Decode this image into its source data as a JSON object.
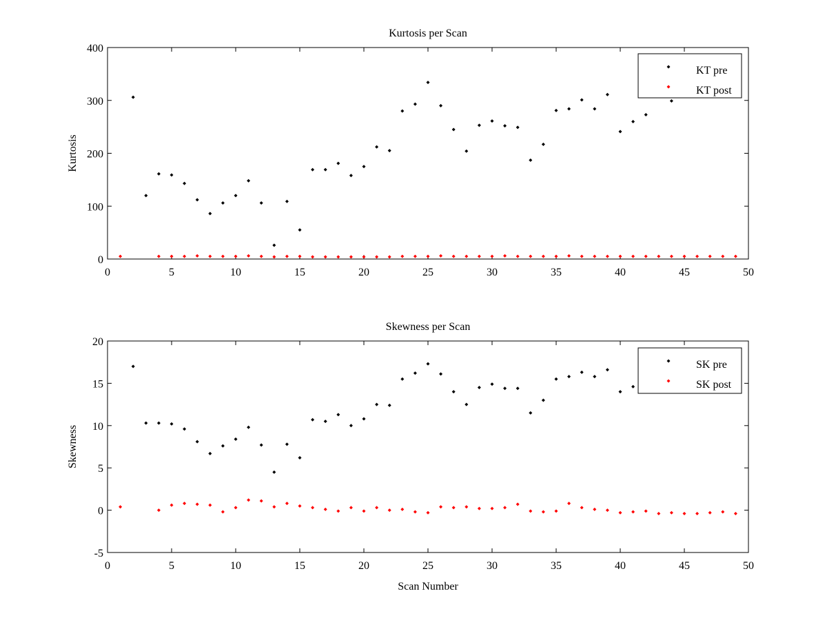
{
  "charts": [
    {
      "type": "scatter",
      "title": "Kurtosis per Scan",
      "xlabel": "",
      "ylabel": "Kurtosis",
      "xlim": [
        0,
        50
      ],
      "ylim": [
        0,
        400
      ],
      "xticks": [
        0,
        5,
        10,
        15,
        20,
        25,
        30,
        35,
        40,
        45,
        50
      ],
      "yticks": [
        0,
        100,
        200,
        300,
        400
      ],
      "legend_position": "top-right",
      "series": [
        {
          "name": "KT pre",
          "color": "#000000",
          "points": [
            [
              2,
              306
            ],
            [
              3,
              120
            ],
            [
              4,
              161
            ],
            [
              5,
              159
            ],
            [
              6,
              143
            ],
            [
              7,
              112
            ],
            [
              8,
              86
            ],
            [
              9,
              106
            ],
            [
              10,
              120
            ],
            [
              11,
              148
            ],
            [
              12,
              106
            ],
            [
              13,
              26
            ],
            [
              14,
              109
            ],
            [
              15,
              55
            ],
            [
              16,
              169
            ],
            [
              17,
              169
            ],
            [
              18,
              181
            ],
            [
              19,
              158
            ],
            [
              20,
              175
            ],
            [
              21,
              212
            ],
            [
              22,
              205
            ],
            [
              23,
              280
            ],
            [
              24,
              293
            ],
            [
              25,
              334
            ],
            [
              26,
              290
            ],
            [
              27,
              245
            ],
            [
              28,
              204
            ],
            [
              29,
              253
            ],
            [
              30,
              261
            ],
            [
              31,
              252
            ],
            [
              32,
              249
            ],
            [
              33,
              187
            ],
            [
              34,
              217
            ],
            [
              35,
              281
            ],
            [
              36,
              284
            ],
            [
              37,
              301
            ],
            [
              38,
              284
            ],
            [
              39,
              311
            ],
            [
              40,
              241
            ],
            [
              41,
              260
            ],
            [
              42,
              273
            ],
            [
              44,
              299
            ]
          ]
        },
        {
          "name": "KT post",
          "color": "#ff0000",
          "points": [
            [
              1,
              5
            ],
            [
              4,
              5
            ],
            [
              5,
              5
            ],
            [
              6,
              5
            ],
            [
              7,
              6
            ],
            [
              8,
              5
            ],
            [
              9,
              5
            ],
            [
              10,
              5
            ],
            [
              11,
              6
            ],
            [
              12,
              5
            ],
            [
              13,
              4
            ],
            [
              14,
              5
            ],
            [
              15,
              5
            ],
            [
              16,
              4
            ],
            [
              17,
              4
            ],
            [
              18,
              4
            ],
            [
              19,
              4
            ],
            [
              20,
              4
            ],
            [
              21,
              4
            ],
            [
              22,
              4
            ],
            [
              23,
              5
            ],
            [
              24,
              5
            ],
            [
              25,
              5
            ],
            [
              26,
              6
            ],
            [
              27,
              5
            ],
            [
              28,
              5
            ],
            [
              29,
              5
            ],
            [
              30,
              5
            ],
            [
              31,
              6
            ],
            [
              32,
              5
            ],
            [
              33,
              5
            ],
            [
              34,
              5
            ],
            [
              35,
              5
            ],
            [
              36,
              6
            ],
            [
              37,
              5
            ],
            [
              38,
              5
            ],
            [
              39,
              5
            ],
            [
              40,
              5
            ],
            [
              41,
              5
            ],
            [
              42,
              5
            ],
            [
              43,
              5
            ],
            [
              44,
              5
            ],
            [
              45,
              5
            ],
            [
              46,
              5
            ],
            [
              47,
              5
            ],
            [
              48,
              5
            ],
            [
              49,
              5
            ]
          ]
        }
      ]
    },
    {
      "type": "scatter",
      "title": "Skewness per Scan",
      "xlabel": "Scan Number",
      "ylabel": "Skewness",
      "xlim": [
        0,
        50
      ],
      "ylim": [
        -5,
        20
      ],
      "xticks": [
        0,
        5,
        10,
        15,
        20,
        25,
        30,
        35,
        40,
        45,
        50
      ],
      "yticks": [
        -5,
        0,
        5,
        10,
        15,
        20
      ],
      "legend_position": "top-right",
      "series": [
        {
          "name": "SK pre",
          "color": "#000000",
          "points": [
            [
              2,
              17
            ],
            [
              3,
              10.3
            ],
            [
              4,
              10.3
            ],
            [
              5,
              10.2
            ],
            [
              6,
              9.6
            ],
            [
              7,
              8.1
            ],
            [
              8,
              6.7
            ],
            [
              9,
              7.6
            ],
            [
              10,
              8.4
            ],
            [
              11,
              9.8
            ],
            [
              12,
              7.7
            ],
            [
              13,
              4.5
            ],
            [
              14,
              7.8
            ],
            [
              15,
              6.2
            ],
            [
              16,
              10.7
            ],
            [
              17,
              10.5
            ],
            [
              18,
              11.3
            ],
            [
              19,
              10
            ],
            [
              20,
              10.8
            ],
            [
              21,
              12.5
            ],
            [
              22,
              12.4
            ],
            [
              23,
              15.5
            ],
            [
              24,
              16.2
            ],
            [
              25,
              17.3
            ],
            [
              26,
              16.1
            ],
            [
              27,
              14
            ],
            [
              28,
              12.5
            ],
            [
              29,
              14.5
            ],
            [
              30,
              14.9
            ],
            [
              31,
              14.4
            ],
            [
              32,
              14.4
            ],
            [
              33,
              11.5
            ],
            [
              34,
              13
            ],
            [
              35,
              15.5
            ],
            [
              36,
              15.8
            ],
            [
              37,
              16.3
            ],
            [
              38,
              15.8
            ],
            [
              39,
              16.6
            ],
            [
              40,
              14
            ],
            [
              41,
              14.6
            ]
          ]
        },
        {
          "name": "SK post",
          "color": "#ff0000",
          "points": [
            [
              1,
              0.4
            ],
            [
              4,
              0.0
            ],
            [
              5,
              0.6
            ],
            [
              6,
              0.8
            ],
            [
              7,
              0.7
            ],
            [
              8,
              0.6
            ],
            [
              9,
              -0.2
            ],
            [
              10,
              0.3
            ],
            [
              11,
              1.2
            ],
            [
              12,
              1.1
            ],
            [
              13,
              0.4
            ],
            [
              14,
              0.8
            ],
            [
              15,
              0.5
            ],
            [
              16,
              0.3
            ],
            [
              17,
              0.1
            ],
            [
              18,
              -0.1
            ],
            [
              19,
              0.3
            ],
            [
              20,
              -0.1
            ],
            [
              21,
              0.3
            ],
            [
              22,
              0.0
            ],
            [
              23,
              0.1
            ],
            [
              24,
              -0.2
            ],
            [
              25,
              -0.3
            ],
            [
              26,
              0.4
            ],
            [
              27,
              0.3
            ],
            [
              28,
              0.4
            ],
            [
              29,
              0.2
            ],
            [
              30,
              0.2
            ],
            [
              31,
              0.3
            ],
            [
              32,
              0.7
            ],
            [
              33,
              -0.1
            ],
            [
              34,
              -0.2
            ],
            [
              35,
              -0.1
            ],
            [
              36,
              0.8
            ],
            [
              37,
              0.3
            ],
            [
              38,
              0.1
            ],
            [
              39,
              0.0
            ],
            [
              40,
              -0.3
            ],
            [
              41,
              -0.2
            ],
            [
              42,
              -0.1
            ],
            [
              43,
              -0.4
            ],
            [
              44,
              -0.3
            ],
            [
              45,
              -0.4
            ],
            [
              46,
              -0.4
            ],
            [
              47,
              -0.3
            ],
            [
              48,
              -0.2
            ],
            [
              49,
              -0.4
            ]
          ]
        }
      ]
    }
  ]
}
